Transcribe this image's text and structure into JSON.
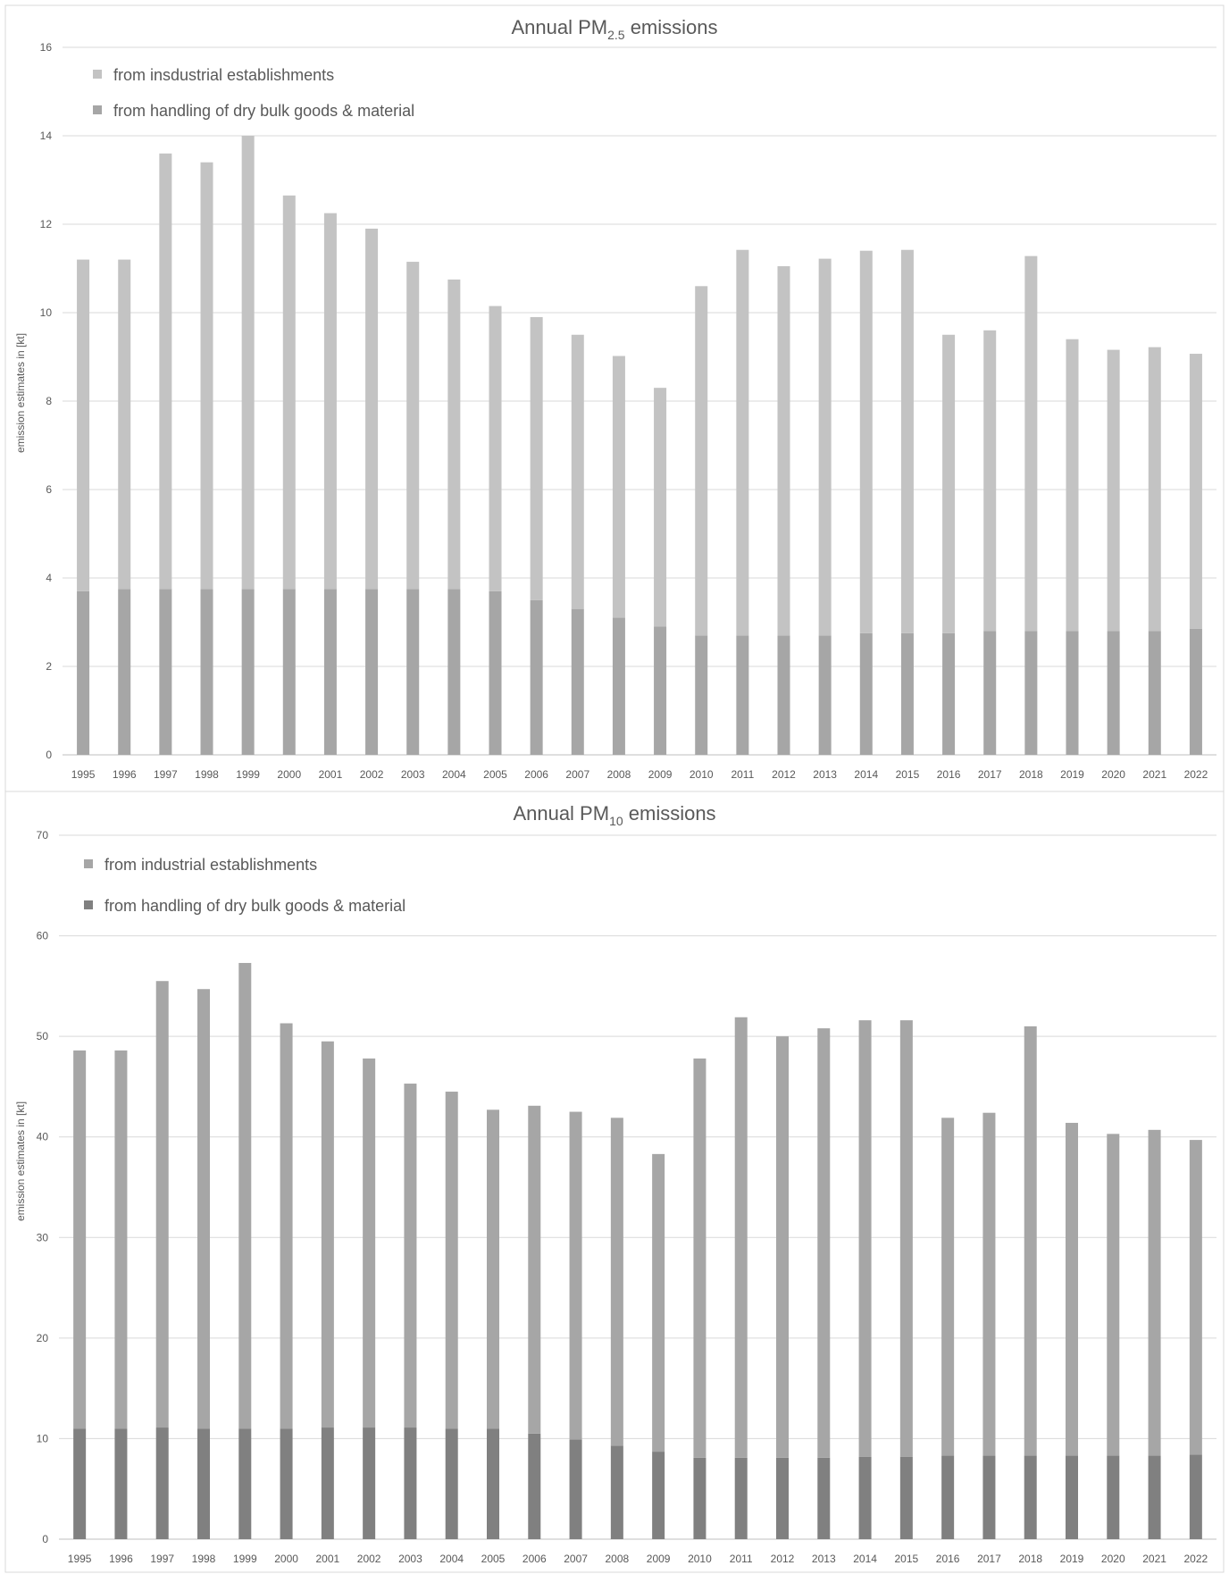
{
  "colors": {
    "light_gray": "#c3c3c3",
    "mid_gray": "#a6a6a6",
    "dark_gray": "#8c8c8c",
    "darker_gray": "#808080",
    "grid": "#d9d9d9",
    "text": "#595959"
  },
  "chart_data": [
    {
      "type": "bar",
      "stacked": true,
      "title": "Annual PM",
      "title_subscript": "2.5",
      "title_suffix": " emissions",
      "xlabel": "",
      "ylabel": "emission estimates in [kt]",
      "ylim": [
        0,
        16
      ],
      "yticks": [
        0,
        2,
        4,
        6,
        8,
        10,
        12,
        14,
        16
      ],
      "grid": true,
      "legend_position": "top-left",
      "categories": [
        "1995",
        "1996",
        "1997",
        "1998",
        "1999",
        "2000",
        "2001",
        "2002",
        "2003",
        "2004",
        "2005",
        "2006",
        "2007",
        "2008",
        "2009",
        "2010",
        "2011",
        "2012",
        "2013",
        "2014",
        "2015",
        "2016",
        "2017",
        "2018",
        "2019",
        "2020",
        "2021",
        "2022"
      ],
      "legend": [
        "from insdustrial establishments",
        "from handling of dry bulk goods & material"
      ],
      "series": [
        {
          "name": "from handling of dry bulk goods & material",
          "color": "#a6a6a6",
          "values": [
            3.7,
            3.75,
            3.75,
            3.75,
            3.75,
            3.75,
            3.75,
            3.75,
            3.75,
            3.75,
            3.7,
            3.5,
            3.3,
            3.1,
            2.9,
            2.7,
            2.7,
            2.7,
            2.7,
            2.75,
            2.75,
            2.75,
            2.8,
            2.8,
            2.8,
            2.8,
            2.8,
            2.85
          ]
        },
        {
          "name": "from insdustrial establishments",
          "color": "#c3c3c3",
          "values": [
            7.5,
            7.45,
            9.85,
            9.65,
            10.25,
            8.9,
            8.5,
            8.15,
            7.4,
            7.0,
            6.45,
            6.4,
            6.2,
            5.92,
            5.4,
            7.9,
            8.72,
            8.35,
            8.52,
            8.65,
            8.67,
            6.75,
            6.8,
            8.48,
            6.6,
            6.36,
            6.42,
            6.22
          ]
        }
      ],
      "totals": [
        11.2,
        11.2,
        13.6,
        13.4,
        14.0,
        12.65,
        12.25,
        11.9,
        11.15,
        10.75,
        10.15,
        9.9,
        9.5,
        9.02,
        8.3,
        10.6,
        11.42,
        11.05,
        11.22,
        11.4,
        11.42,
        9.5,
        9.6,
        11.28,
        9.4,
        9.16,
        9.22,
        9.07
      ]
    },
    {
      "type": "bar",
      "stacked": true,
      "title": "Annual PM",
      "title_subscript": "10",
      "title_suffix": " emissions",
      "xlabel": "",
      "ylabel": "emission estimates in [kt]",
      "ylim": [
        0,
        70
      ],
      "yticks": [
        0,
        10,
        20,
        30,
        40,
        50,
        60,
        70
      ],
      "grid": true,
      "legend_position": "top-left",
      "categories": [
        "1995",
        "1996",
        "1997",
        "1998",
        "1999",
        "2000",
        "2001",
        "2002",
        "2003",
        "2004",
        "2005",
        "2006",
        "2007",
        "2008",
        "2009",
        "2010",
        "2011",
        "2012",
        "2013",
        "2014",
        "2015",
        "2016",
        "2017",
        "2018",
        "2019",
        "2020",
        "2021",
        "2022"
      ],
      "legend": [
        "from industrial establishments",
        "from handling of dry bulk goods & material"
      ],
      "series": [
        {
          "name": "from handling of dry bulk goods & material",
          "color": "#808080",
          "values": [
            11.0,
            11.0,
            11.1,
            11.0,
            11.0,
            11.0,
            11.1,
            11.1,
            11.1,
            11.0,
            11.0,
            10.5,
            9.9,
            9.3,
            8.7,
            8.1,
            8.1,
            8.1,
            8.1,
            8.2,
            8.2,
            8.3,
            8.3,
            8.3,
            8.3,
            8.3,
            8.3,
            8.4
          ]
        },
        {
          "name": "from industrial establishments",
          "color": "#a6a6a6",
          "values": [
            37.6,
            37.6,
            44.4,
            43.7,
            46.3,
            40.3,
            38.4,
            36.7,
            34.2,
            33.5,
            31.7,
            32.6,
            32.6,
            32.6,
            29.6,
            39.7,
            43.8,
            41.9,
            42.7,
            43.4,
            43.4,
            33.6,
            34.1,
            42.7,
            33.1,
            32.0,
            32.4,
            31.3
          ]
        }
      ],
      "totals": [
        48.6,
        48.6,
        55.5,
        54.7,
        57.3,
        51.3,
        49.5,
        47.8,
        45.3,
        44.5,
        42.7,
        43.1,
        42.5,
        41.9,
        38.3,
        47.8,
        51.9,
        50.0,
        50.8,
        51.6,
        51.6,
        41.9,
        42.4,
        51.0,
        41.4,
        40.3,
        40.7,
        39.7
      ]
    }
  ]
}
